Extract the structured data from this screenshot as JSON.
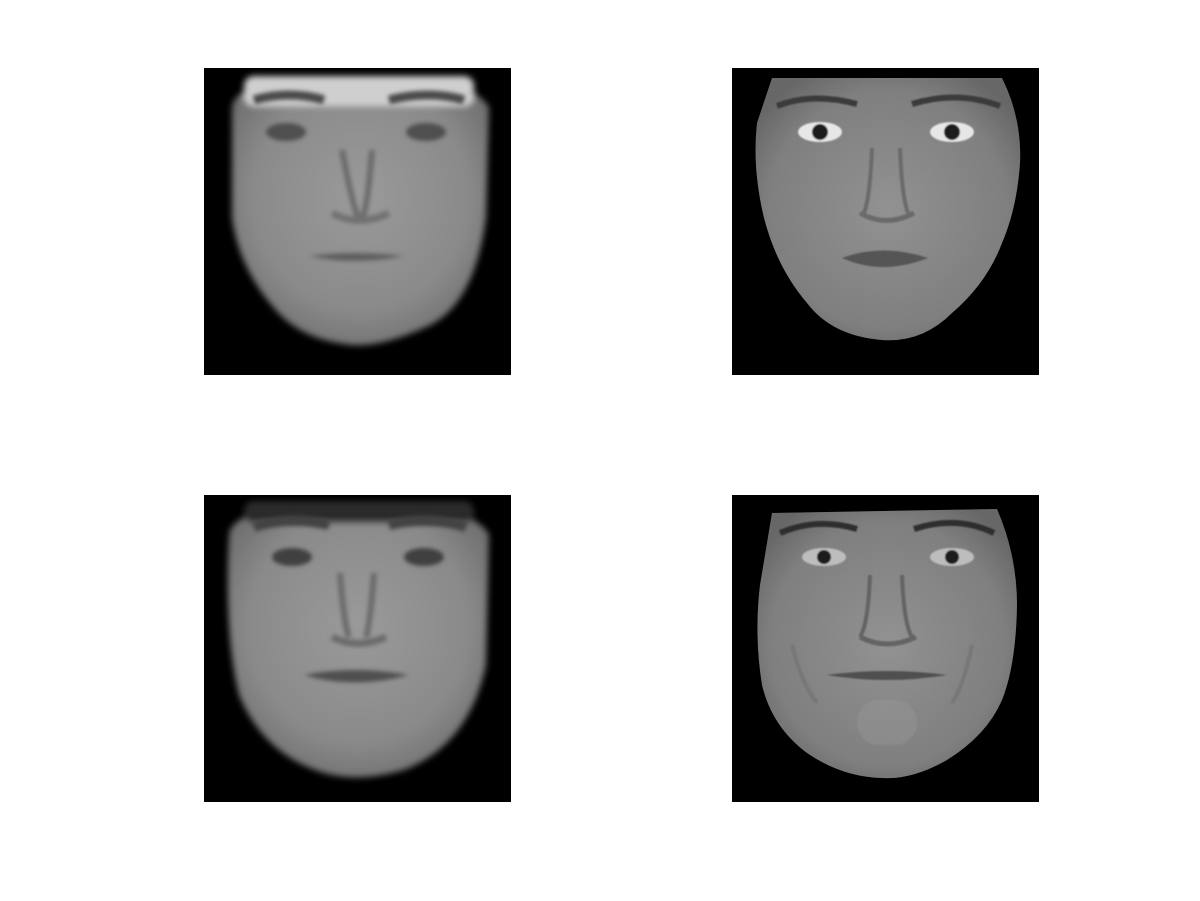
{
  "figure": {
    "panels": [
      {
        "id": "top-left",
        "kind": "face-reconstruction",
        "style": "blurred"
      },
      {
        "id": "top-right",
        "kind": "face-image",
        "style": "detailed"
      },
      {
        "id": "bottom-left",
        "kind": "face-reconstruction",
        "style": "blurred"
      },
      {
        "id": "bottom-right",
        "kind": "face-image",
        "style": "detailed"
      }
    ],
    "colors": {
      "figure_background": "#ffffff",
      "panel_background": "#000000",
      "skin_blurred": "#8e8e8e",
      "skin_detailed": "#8a8a8a"
    }
  }
}
